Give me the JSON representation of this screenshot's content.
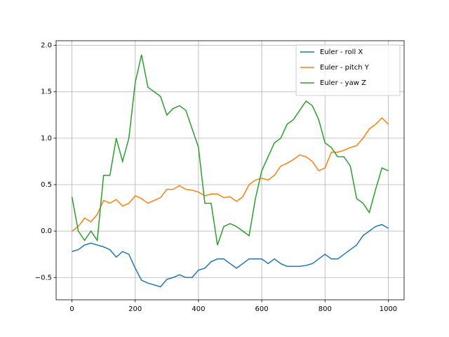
{
  "chart_data": {
    "type": "line",
    "x": [
      0,
      20,
      40,
      60,
      80,
      100,
      120,
      140,
      160,
      180,
      200,
      220,
      240,
      260,
      280,
      300,
      320,
      340,
      360,
      380,
      400,
      420,
      440,
      460,
      480,
      500,
      520,
      540,
      560,
      580,
      600,
      620,
      640,
      660,
      680,
      700,
      720,
      740,
      760,
      780,
      800,
      820,
      840,
      860,
      880,
      900,
      920,
      940,
      960,
      980,
      1000
    ],
    "series": [
      {
        "name": "Euler - roll X",
        "color": "#1f77b4",
        "values": [
          -0.22,
          -0.2,
          -0.15,
          -0.13,
          -0.15,
          -0.17,
          -0.2,
          -0.28,
          -0.22,
          -0.25,
          -0.4,
          -0.53,
          -0.56,
          -0.58,
          -0.6,
          -0.52,
          -0.5,
          -0.47,
          -0.5,
          -0.5,
          -0.42,
          -0.4,
          -0.33,
          -0.3,
          -0.3,
          -0.35,
          -0.4,
          -0.35,
          -0.3,
          -0.3,
          -0.3,
          -0.35,
          -0.3,
          -0.35,
          -0.38,
          -0.38,
          -0.38,
          -0.37,
          -0.35,
          -0.3,
          -0.25,
          -0.3,
          -0.3,
          -0.25,
          -0.2,
          -0.15,
          -0.05,
          0.0,
          0.05,
          0.07,
          0.03
        ]
      },
      {
        "name": "Euler - pitch Y",
        "color": "#ff7f0e",
        "values": [
          0.0,
          0.05,
          0.14,
          0.1,
          0.18,
          0.33,
          0.3,
          0.34,
          0.27,
          0.3,
          0.38,
          0.35,
          0.3,
          0.33,
          0.36,
          0.45,
          0.45,
          0.49,
          0.45,
          0.44,
          0.42,
          0.38,
          0.4,
          0.4,
          0.36,
          0.37,
          0.32,
          0.37,
          0.5,
          0.55,
          0.57,
          0.55,
          0.6,
          0.7,
          0.73,
          0.77,
          0.82,
          0.8,
          0.75,
          0.65,
          0.68,
          0.85,
          0.85,
          0.87,
          0.9,
          0.92,
          1.0,
          1.1,
          1.15,
          1.22,
          1.15
        ]
      },
      {
        "name": "Euler - yaw Z",
        "color": "#2ca02c",
        "values": [
          0.37,
          0.0,
          -0.1,
          0.0,
          -0.1,
          0.6,
          0.6,
          1.0,
          0.75,
          1.0,
          1.6,
          1.9,
          1.55,
          1.5,
          1.45,
          1.25,
          1.32,
          1.35,
          1.3,
          1.1,
          0.9,
          0.3,
          0.3,
          -0.15,
          0.05,
          0.08,
          0.05,
          0.0,
          -0.05,
          0.35,
          0.65,
          0.8,
          0.95,
          1.0,
          1.15,
          1.2,
          1.3,
          1.4,
          1.35,
          1.2,
          0.95,
          0.9,
          0.8,
          0.8,
          0.7,
          0.35,
          0.3,
          0.2,
          0.45,
          0.68,
          0.65
        ]
      }
    ],
    "xlim": [
      -50,
      1050
    ],
    "ylim": [
      -0.74,
      2.05
    ],
    "xticks": [
      0,
      200,
      400,
      600,
      800,
      1000
    ],
    "yticks": [
      {
        "value": -0.5,
        "label": "−0.5"
      },
      {
        "value": 0.0,
        "label": "0.0"
      },
      {
        "value": 0.5,
        "label": "0.5"
      },
      {
        "value": 1.0,
        "label": "1.0"
      },
      {
        "value": 1.5,
        "label": "1.5"
      },
      {
        "value": 2.0,
        "label": "2.0"
      }
    ],
    "grid": true,
    "legend": "upper right"
  }
}
